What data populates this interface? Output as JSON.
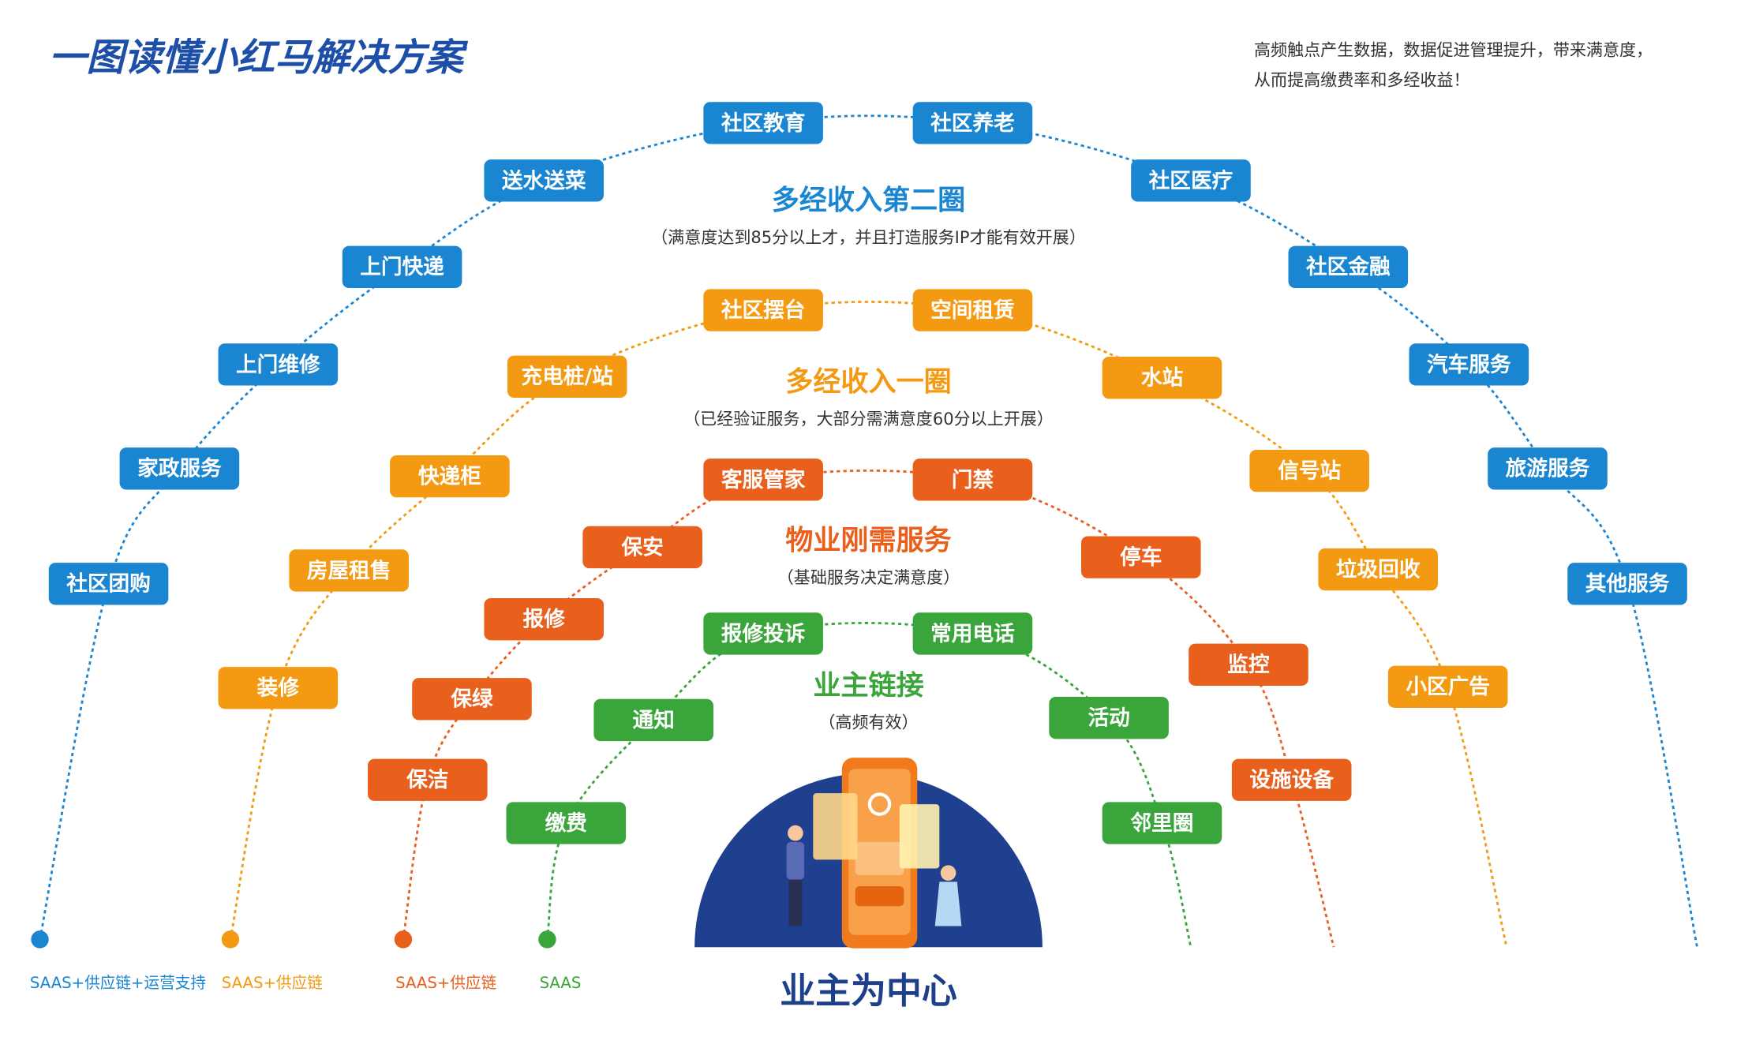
{
  "title": "一图读懂小红马解决方案",
  "note": [
    "高频触点产生数据，数据促进管理提升，带来满意度，",
    "从而提高缴费率和多经收益！"
  ],
  "rings": [
    {
      "name": "多经收入第二圈",
      "subtitle": "（满意度达到85分以上才，并且打造服务IP才能有效开展）",
      "color": "#1a86d2",
      "legend": "SAAS+供应链+运营支持",
      "nodes": [
        "社区团购",
        "家政服务",
        "上门维修",
        "上门快递",
        "送水送菜",
        "社区教育",
        "社区养老",
        "社区医疗",
        "社区金融",
        "汽车服务",
        "旅游服务",
        "其他服务"
      ]
    },
    {
      "name": "多经收入一圈",
      "subtitle": "（已经验证服务，大部分需满意度60分以上开展）",
      "color": "#f39a12",
      "legend": "SAAS+供应链",
      "nodes": [
        "装修",
        "房屋租售",
        "快递柜",
        "充电桩/站",
        "社区摆台",
        "空间租赁",
        "水站",
        "信号站",
        "垃圾回收",
        "小区广告"
      ]
    },
    {
      "name": "物业刚需服务",
      "subtitle": "（基础服务决定满意度）",
      "color": "#e8601c",
      "legend": "SAAS+供应链",
      "nodes": [
        "保洁",
        "保绿",
        "报修",
        "保安",
        "客服管家",
        "门禁",
        "停车",
        "监控",
        "设施设备"
      ]
    },
    {
      "name": "业主链接",
      "subtitle": "（高频有效）",
      "color": "#3aa53a",
      "legend": "SAAS",
      "nodes": [
        "缴费",
        "通知",
        "报修投诉",
        "常用电话",
        "活动",
        "邻里圈"
      ]
    }
  ],
  "center": "业主为中心"
}
